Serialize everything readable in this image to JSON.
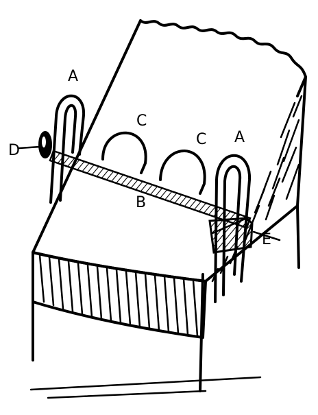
{
  "labels": {
    "a_left": "A",
    "a_right": "A",
    "c_left": "C",
    "c_right": "C",
    "d": "D",
    "b": "B",
    "e": "E"
  }
}
